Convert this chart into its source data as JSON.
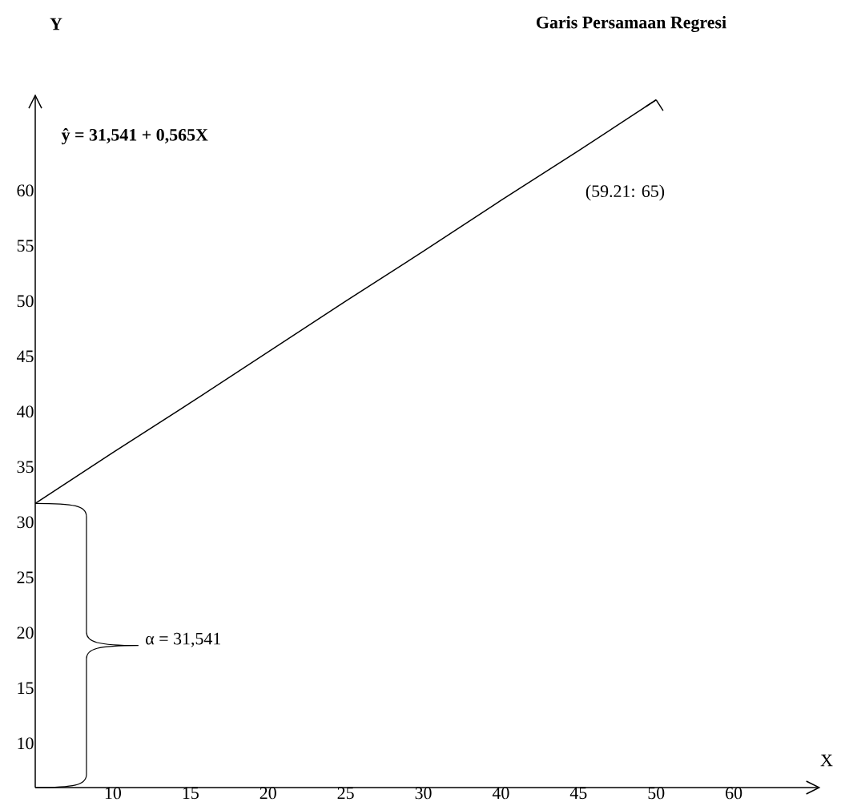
{
  "chart_data": {
    "type": "line",
    "title": "Garis Persamaan Regresi",
    "xlabel": "X",
    "ylabel": "Y",
    "categories": [
      null,
      "10",
      "15",
      "20",
      "25",
      "30",
      "40",
      "45",
      "50",
      "60"
    ],
    "values": [
      31.7,
      36.3,
      40.8,
      45.4,
      50.0,
      54.5,
      59.1,
      63.6,
      68.2,
      null
    ],
    "color": "#000000",
    "ylim": [
      6,
      68.6
    ],
    "yticks": [
      10,
      15,
      20,
      25,
      30,
      35,
      40,
      45,
      50,
      55,
      60
    ],
    "annotations": [
      "ŷ = 31,541 + 0,565X",
      "(59.21: 65)",
      "α = 31,541"
    ]
  }
}
